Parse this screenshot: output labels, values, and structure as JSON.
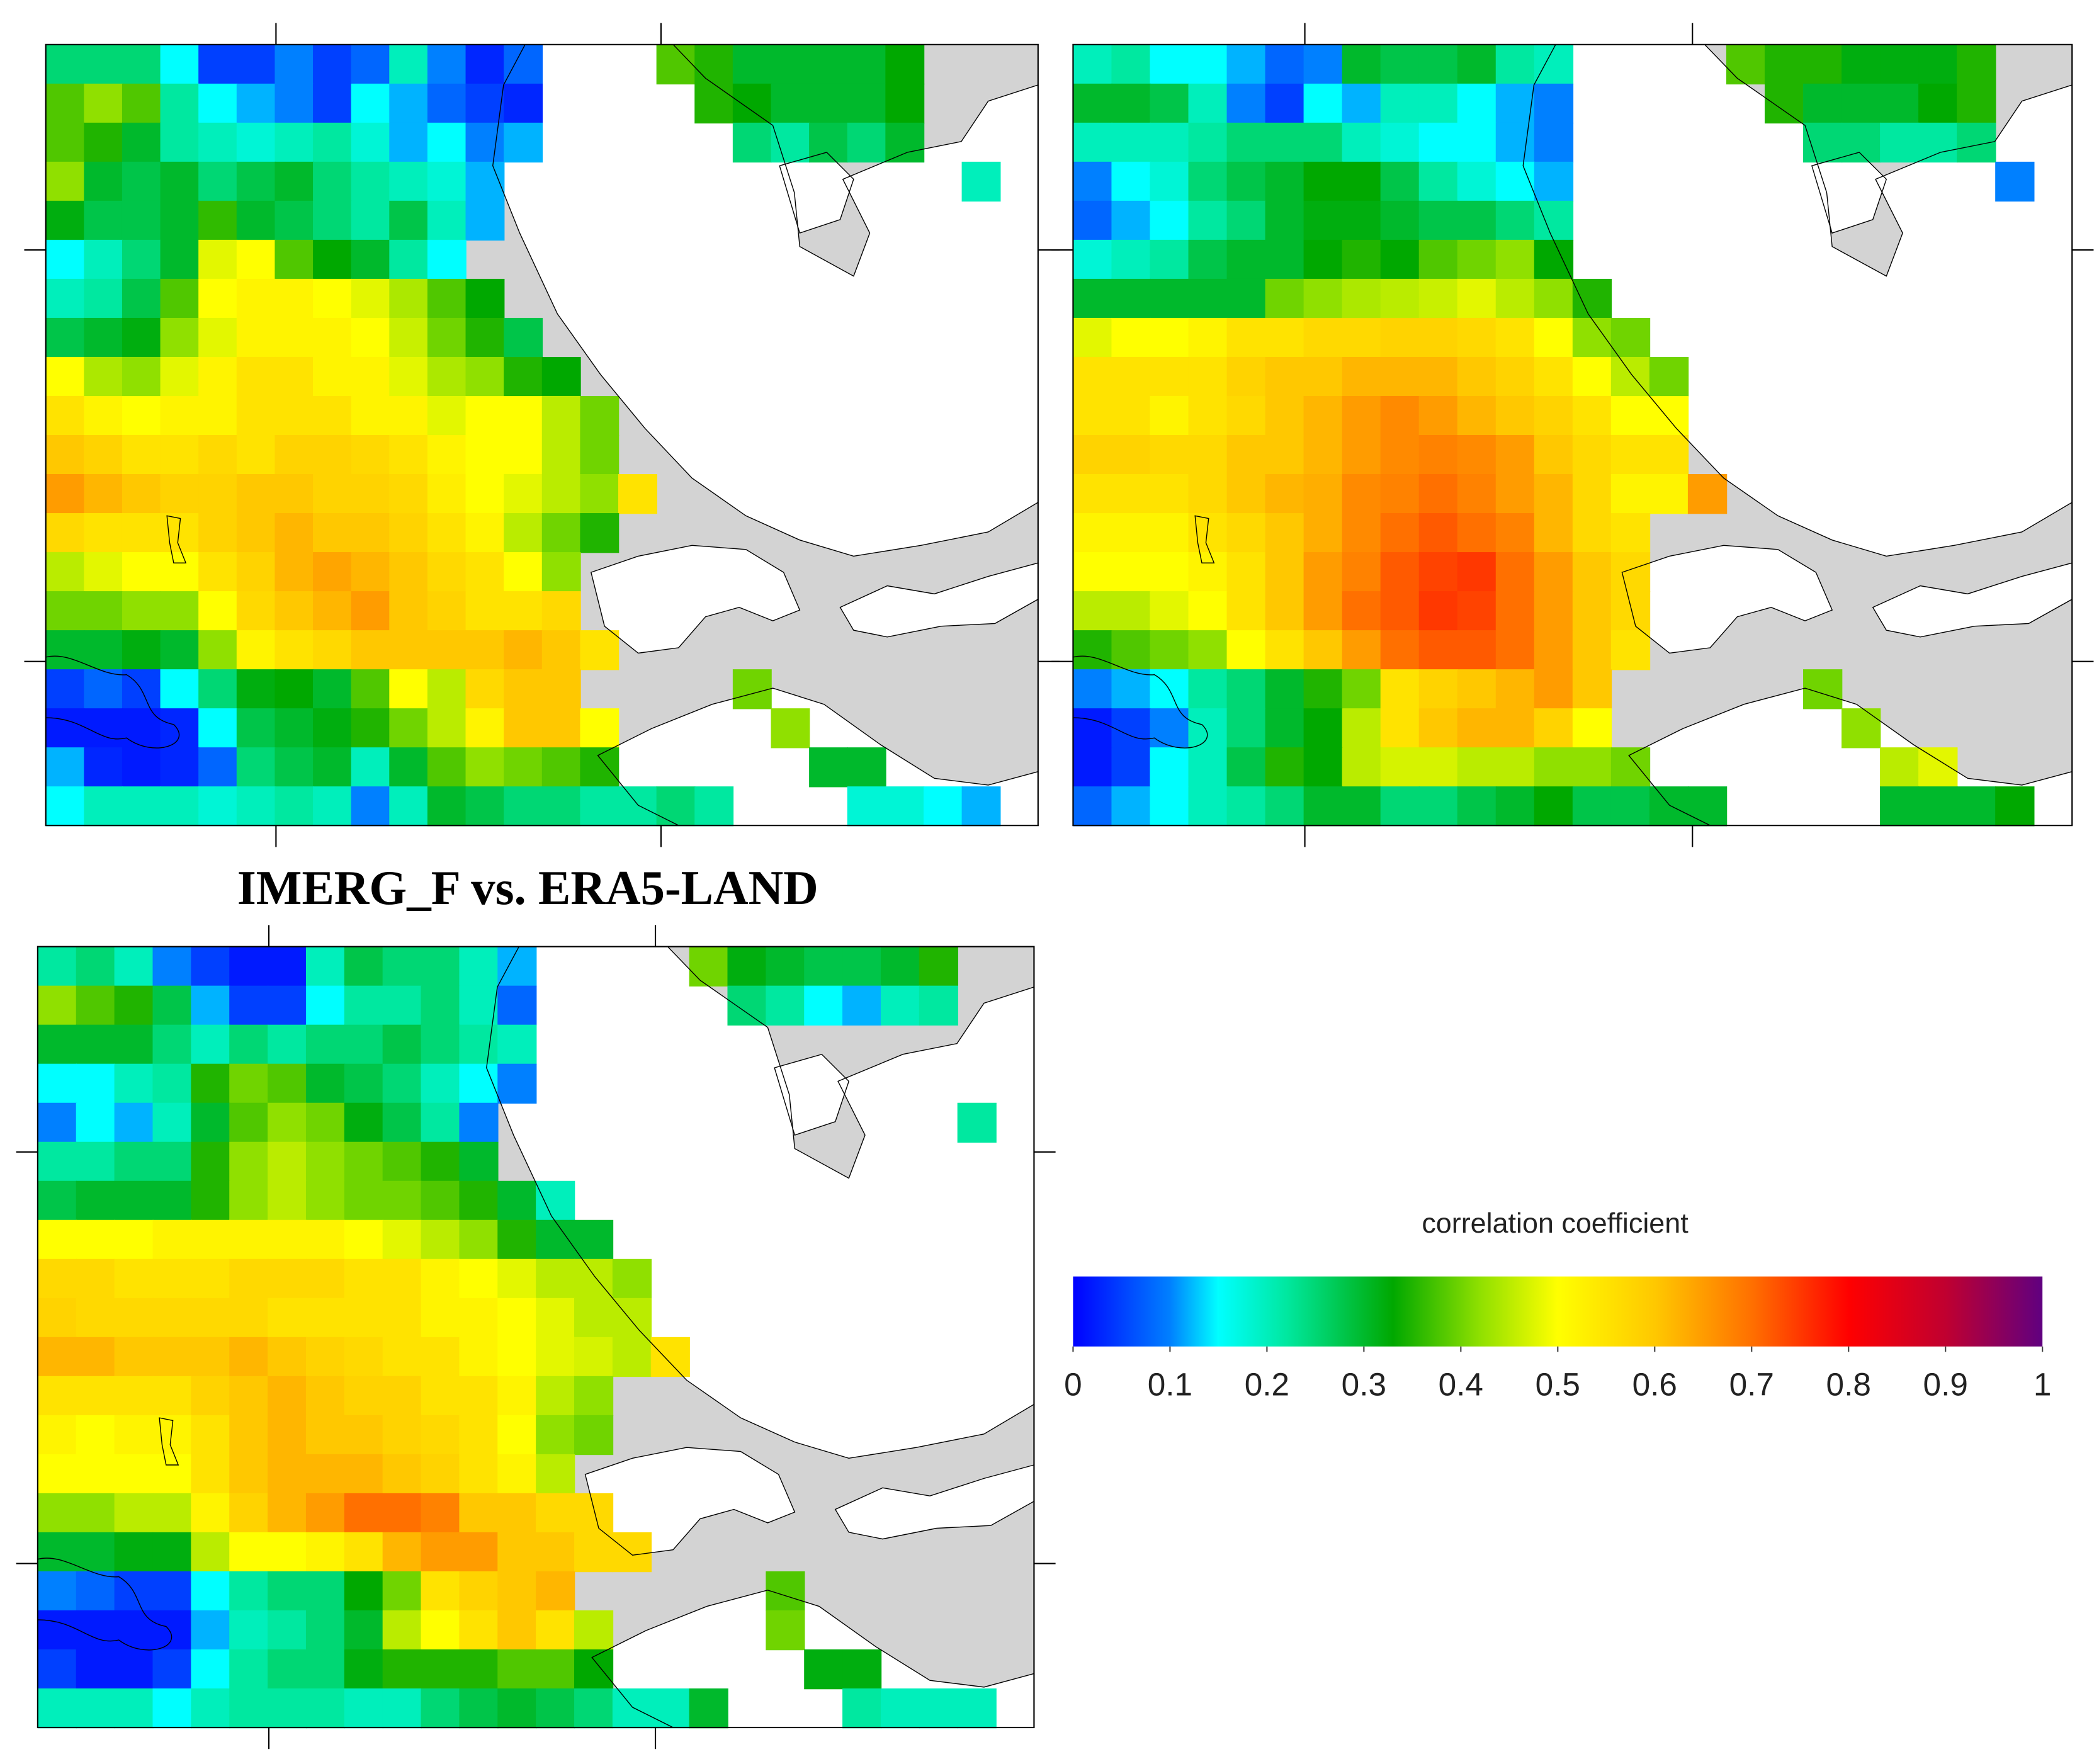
{
  "chart_data": [
    {
      "type": "heatmap",
      "values": [
        [
          0.25,
          0.25,
          0.25,
          0.15,
          0.05,
          0.05,
          0.1,
          0.05,
          0.08,
          0.2,
          0.1,
          0.03,
          0.08,
          null,
          null,
          null,
          0.38,
          0.35,
          0.3,
          0.3,
          0.3,
          0.3,
          0.33
        ],
        [
          0.38,
          0.42,
          0.38,
          0.22,
          0.15,
          0.12,
          0.1,
          0.05,
          0.15,
          0.12,
          0.08,
          0.05,
          0.03,
          null,
          null,
          null,
          null,
          0.35,
          0.33,
          0.3,
          0.3,
          0.3,
          0.33
        ],
        [
          0.38,
          0.35,
          0.3,
          0.22,
          0.2,
          0.18,
          0.2,
          0.22,
          0.18,
          0.12,
          0.15,
          0.1,
          0.12,
          null,
          null,
          null,
          null,
          null,
          0.25,
          0.22,
          0.28,
          0.25,
          0.3
        ],
        [
          0.42,
          0.3,
          0.28,
          0.3,
          0.25,
          0.28,
          0.3,
          0.25,
          0.22,
          0.2,
          0.18,
          0.12,
          null,
          null,
          null,
          null,
          null,
          null,
          null,
          null,
          null,
          null,
          null,
          null,
          0.2
        ],
        [
          0.32,
          0.28,
          0.28,
          0.3,
          0.36,
          0.3,
          0.28,
          0.25,
          0.22,
          0.28,
          0.2,
          0.12
        ],
        [
          0.15,
          0.2,
          0.25,
          0.3,
          0.48,
          0.5,
          0.38,
          0.33,
          0.3,
          0.22,
          0.15
        ],
        [
          0.2,
          0.22,
          0.28,
          0.38,
          0.5,
          0.52,
          0.52,
          0.5,
          0.48,
          0.44,
          0.38,
          0.33
        ],
        [
          0.28,
          0.3,
          0.32,
          0.42,
          0.48,
          0.52,
          0.52,
          0.52,
          0.5,
          0.46,
          0.4,
          0.35,
          0.28
        ],
        [
          0.5,
          0.44,
          0.42,
          0.48,
          0.52,
          0.55,
          0.55,
          0.52,
          0.52,
          0.48,
          0.44,
          0.42,
          0.35,
          0.33
        ],
        [
          0.55,
          0.52,
          0.5,
          0.52,
          0.52,
          0.55,
          0.55,
          0.55,
          0.52,
          0.52,
          0.48,
          0.5,
          0.5,
          0.45,
          0.4
        ],
        [
          0.6,
          0.58,
          0.55,
          0.55,
          0.57,
          0.55,
          0.58,
          0.58,
          0.57,
          0.55,
          0.52,
          0.5,
          0.5,
          0.45,
          0.4
        ],
        [
          0.65,
          0.62,
          0.6,
          0.58,
          0.58,
          0.6,
          0.6,
          0.58,
          0.58,
          0.57,
          0.53,
          0.5,
          0.48,
          0.45,
          0.42,
          0.55
        ],
        [
          0.57,
          0.55,
          0.55,
          0.55,
          0.58,
          0.6,
          0.62,
          0.6,
          0.6,
          0.58,
          0.55,
          0.52,
          0.45,
          0.4,
          0.35
        ],
        [
          0.45,
          0.48,
          0.5,
          0.5,
          0.55,
          0.58,
          0.62,
          0.64,
          0.62,
          0.6,
          0.57,
          0.55,
          0.5,
          0.42
        ],
        [
          0.4,
          0.4,
          0.42,
          0.42,
          0.5,
          0.57,
          0.6,
          0.62,
          0.65,
          0.6,
          0.58,
          0.55,
          0.55,
          0.57
        ],
        [
          0.3,
          0.3,
          0.32,
          0.3,
          0.42,
          0.52,
          0.55,
          0.57,
          0.6,
          0.6,
          0.6,
          0.6,
          0.62,
          0.6,
          0.55
        ],
        [
          0.05,
          0.08,
          0.05,
          0.15,
          0.25,
          0.32,
          0.33,
          0.3,
          0.38,
          0.5,
          0.45,
          0.57,
          0.6,
          0.6,
          null,
          null,
          null,
          null,
          0.4
        ],
        [
          0.02,
          0.02,
          0.02,
          0.03,
          0.15,
          0.28,
          0.3,
          0.32,
          0.35,
          0.4,
          0.45,
          0.52,
          0.6,
          0.6,
          0.5,
          null,
          null,
          null,
          null,
          0.42
        ],
        [
          0.12,
          0.03,
          0.02,
          0.03,
          0.08,
          0.25,
          0.28,
          0.3,
          0.2,
          0.3,
          0.38,
          0.42,
          0.4,
          0.38,
          0.35,
          null,
          null,
          null,
          null,
          null,
          0.3,
          0.3
        ],
        [
          0.15,
          0.2,
          0.2,
          0.2,
          0.18,
          0.2,
          0.22,
          0.2,
          0.1,
          0.2,
          0.3,
          0.28,
          0.25,
          0.25,
          0.22,
          0.22,
          0.25,
          0.22,
          null,
          null,
          null,
          0.18,
          0.18,
          0.15,
          0.12
        ]
      ]
    },
    {
      "type": "heatmap",
      "values": [
        [
          0.2,
          0.22,
          0.15,
          0.15,
          0.12,
          0.08,
          0.1,
          0.3,
          0.28,
          0.28,
          0.3,
          0.22,
          0.2,
          null,
          null,
          null,
          null,
          0.38,
          0.35,
          0.35,
          0.32,
          0.32,
          0.32,
          0.35
        ],
        [
          0.3,
          0.3,
          0.28,
          0.2,
          0.1,
          0.05,
          0.15,
          0.12,
          0.2,
          0.2,
          0.15,
          0.12,
          0.1,
          null,
          null,
          null,
          null,
          null,
          0.35,
          0.3,
          0.3,
          0.3,
          0.33,
          0.35
        ],
        [
          0.2,
          0.2,
          0.2,
          0.22,
          0.25,
          0.25,
          0.25,
          0.2,
          0.18,
          0.15,
          0.15,
          0.12,
          0.1,
          null,
          null,
          null,
          null,
          null,
          null,
          0.25,
          0.25,
          0.22,
          0.22,
          0.25
        ],
        [
          0.1,
          0.15,
          0.18,
          0.25,
          0.28,
          0.3,
          0.33,
          0.33,
          0.28,
          0.22,
          0.18,
          0.15,
          0.12,
          null,
          null,
          null,
          null,
          null,
          null,
          null,
          null,
          null,
          null,
          null,
          0.1
        ],
        [
          0.08,
          0.12,
          0.15,
          0.22,
          0.25,
          0.3,
          0.32,
          0.32,
          0.3,
          0.28,
          0.28,
          0.25,
          0.22
        ],
        [
          0.18,
          0.2,
          0.22,
          0.28,
          0.3,
          0.3,
          0.33,
          0.35,
          0.33,
          0.38,
          0.4,
          0.42,
          0.33
        ],
        [
          0.3,
          0.3,
          0.3,
          0.3,
          0.3,
          0.4,
          0.42,
          0.44,
          0.45,
          0.46,
          0.48,
          0.45,
          0.42,
          0.35
        ],
        [
          0.48,
          0.5,
          0.5,
          0.52,
          0.55,
          0.55,
          0.57,
          0.57,
          0.58,
          0.58,
          0.57,
          0.55,
          0.5,
          0.42,
          0.4
        ],
        [
          0.55,
          0.55,
          0.55,
          0.55,
          0.58,
          0.6,
          0.6,
          0.62,
          0.62,
          0.62,
          0.6,
          0.58,
          0.55,
          0.5,
          0.45,
          0.4
        ],
        [
          0.55,
          0.55,
          0.52,
          0.55,
          0.57,
          0.6,
          0.62,
          0.65,
          0.67,
          0.65,
          0.62,
          0.6,
          0.58,
          0.55,
          0.5,
          0.5
        ],
        [
          0.58,
          0.58,
          0.57,
          0.57,
          0.6,
          0.6,
          0.62,
          0.65,
          0.67,
          0.68,
          0.67,
          0.65,
          0.6,
          0.57,
          0.55,
          0.55
        ],
        [
          0.55,
          0.55,
          0.55,
          0.57,
          0.6,
          0.62,
          0.63,
          0.67,
          0.68,
          0.7,
          0.68,
          0.65,
          0.62,
          0.57,
          0.52,
          0.52,
          0.65
        ],
        [
          0.52,
          0.52,
          0.52,
          0.55,
          0.57,
          0.6,
          0.63,
          0.67,
          0.7,
          0.72,
          0.7,
          0.68,
          0.62,
          0.57,
          0.55
        ],
        [
          0.5,
          0.5,
          0.5,
          0.52,
          0.55,
          0.6,
          0.65,
          0.68,
          0.72,
          0.74,
          0.75,
          0.7,
          0.65,
          0.6,
          0.57
        ],
        [
          0.45,
          0.45,
          0.48,
          0.5,
          0.55,
          0.6,
          0.65,
          0.7,
          0.72,
          0.75,
          0.74,
          0.7,
          0.65,
          0.6,
          0.57
        ],
        [
          0.35,
          0.38,
          0.4,
          0.42,
          0.5,
          0.55,
          0.6,
          0.65,
          0.7,
          0.72,
          0.72,
          0.7,
          0.65,
          0.6,
          0.55
        ],
        [
          0.1,
          0.12,
          0.15,
          0.22,
          0.25,
          0.3,
          0.35,
          0.4,
          0.55,
          0.58,
          0.6,
          0.62,
          0.65,
          0.6,
          null,
          null,
          null,
          null,
          null,
          0.4
        ],
        [
          0.02,
          0.05,
          0.1,
          0.2,
          0.25,
          0.3,
          0.33,
          0.45,
          0.55,
          0.6,
          0.62,
          0.62,
          0.58,
          0.5,
          null,
          null,
          null,
          null,
          null,
          null,
          0.42
        ],
        [
          0.02,
          0.05,
          0.15,
          0.2,
          0.28,
          0.35,
          0.33,
          0.45,
          0.47,
          0.47,
          0.45,
          0.45,
          0.42,
          0.42,
          0.4,
          null,
          null,
          null,
          null,
          null,
          null,
          0.45,
          0.48
        ],
        [
          0.08,
          0.12,
          0.15,
          0.2,
          0.22,
          0.25,
          0.3,
          0.3,
          0.25,
          0.25,
          0.28,
          0.3,
          0.33,
          0.28,
          0.28,
          0.3,
          0.3,
          null,
          null,
          null,
          null,
          0.3,
          0.3,
          0.3,
          0.33
        ]
      ]
    },
    {
      "type": "heatmap",
      "title": "IMERG_F vs. ERA5-LAND",
      "values": [
        [
          0.22,
          0.25,
          0.2,
          0.1,
          0.05,
          0.02,
          0.02,
          0.2,
          0.28,
          0.25,
          0.25,
          0.2,
          0.12,
          null,
          null,
          null,
          null,
          0.4,
          0.32,
          0.3,
          0.28,
          0.28,
          0.3,
          0.35
        ],
        [
          0.42,
          0.38,
          0.35,
          0.28,
          0.12,
          0.05,
          0.05,
          0.15,
          0.22,
          0.22,
          0.25,
          0.2,
          0.08,
          null,
          null,
          null,
          null,
          null,
          0.25,
          0.22,
          0.15,
          0.12,
          0.2,
          0.22
        ],
        [
          0.3,
          0.3,
          0.3,
          0.25,
          0.2,
          0.25,
          0.22,
          0.25,
          0.25,
          0.28,
          0.25,
          0.22,
          0.2
        ],
        [
          0.15,
          0.15,
          0.2,
          0.22,
          0.35,
          0.4,
          0.38,
          0.3,
          0.28,
          0.25,
          0.2,
          0.15,
          0.1
        ],
        [
          0.1,
          0.15,
          0.12,
          0.2,
          0.3,
          0.38,
          0.42,
          0.4,
          0.32,
          0.28,
          0.22,
          0.1,
          null,
          null,
          null,
          null,
          null,
          null,
          null,
          null,
          null,
          null,
          null,
          null,
          0.22
        ],
        [
          0.22,
          0.22,
          0.25,
          0.25,
          0.35,
          0.42,
          0.45,
          0.42,
          0.4,
          0.38,
          0.35,
          0.3
        ],
        [
          0.28,
          0.3,
          0.3,
          0.3,
          0.35,
          0.42,
          0.45,
          0.42,
          0.4,
          0.4,
          0.38,
          0.35,
          0.3,
          0.2
        ],
        [
          0.5,
          0.5,
          0.5,
          0.52,
          0.52,
          0.52,
          0.52,
          0.52,
          0.5,
          0.48,
          0.45,
          0.42,
          0.35,
          0.3,
          0.3
        ],
        [
          0.57,
          0.57,
          0.55,
          0.55,
          0.55,
          0.57,
          0.57,
          0.57,
          0.55,
          0.55,
          0.52,
          0.5,
          0.48,
          0.45,
          0.45,
          0.42
        ],
        [
          0.58,
          0.57,
          0.57,
          0.57,
          0.57,
          0.57,
          0.55,
          0.55,
          0.55,
          0.55,
          0.52,
          0.52,
          0.5,
          0.48,
          0.45,
          0.45
        ],
        [
          0.62,
          0.62,
          0.6,
          0.6,
          0.6,
          0.62,
          0.6,
          0.58,
          0.57,
          0.55,
          0.55,
          0.52,
          0.5,
          0.48,
          0.47,
          0.45,
          0.55
        ],
        [
          0.55,
          0.55,
          0.55,
          0.55,
          0.58,
          0.6,
          0.62,
          0.6,
          0.58,
          0.58,
          0.55,
          0.55,
          0.52,
          0.45,
          0.42
        ],
        [
          0.52,
          0.5,
          0.52,
          0.52,
          0.55,
          0.6,
          0.62,
          0.6,
          0.6,
          0.58,
          0.57,
          0.55,
          0.5,
          0.42,
          0.4
        ],
        [
          0.5,
          0.5,
          0.5,
          0.5,
          0.55,
          0.6,
          0.62,
          0.62,
          0.62,
          0.6,
          0.58,
          0.55,
          0.52,
          0.45
        ],
        [
          0.42,
          0.42,
          0.45,
          0.45,
          0.52,
          0.58,
          0.62,
          0.65,
          0.7,
          0.7,
          0.68,
          0.6,
          0.6,
          0.57,
          0.57
        ],
        [
          0.3,
          0.3,
          0.32,
          0.32,
          0.45,
          0.5,
          0.5,
          0.52,
          0.55,
          0.62,
          0.65,
          0.65,
          0.6,
          0.6,
          0.57,
          0.57
        ],
        [
          0.1,
          0.08,
          0.05,
          0.05,
          0.15,
          0.22,
          0.25,
          0.25,
          0.33,
          0.4,
          0.55,
          0.58,
          0.6,
          0.62,
          null,
          null,
          null,
          null,
          null,
          0.38
        ],
        [
          0.02,
          0.02,
          0.02,
          0.02,
          0.12,
          0.2,
          0.22,
          0.25,
          0.3,
          0.45,
          0.5,
          0.55,
          0.6,
          0.55,
          0.45,
          null,
          null,
          null,
          null,
          0.4
        ],
        [
          0.05,
          0.02,
          0.02,
          0.05,
          0.15,
          0.22,
          0.25,
          0.25,
          0.32,
          0.35,
          0.35,
          0.35,
          0.38,
          0.38,
          0.33,
          null,
          null,
          null,
          null,
          null,
          0.32,
          0.32
        ],
        [
          0.2,
          0.2,
          0.2,
          0.15,
          0.2,
          0.22,
          0.22,
          0.22,
          0.2,
          0.2,
          0.25,
          0.28,
          0.3,
          0.28,
          0.25,
          0.2,
          0.2,
          0.3,
          null,
          null,
          null,
          0.22,
          0.2,
          0.2,
          0.2
        ]
      ]
    }
  ],
  "colorbar": {
    "label": "correlation coefficient",
    "lim": [
      0,
      1
    ],
    "ticks": [
      0,
      0.1,
      0.2,
      0.3,
      0.4,
      0.5,
      0.6,
      0.7,
      0.8,
      0.9,
      1
    ],
    "colorscale": [
      [
        0,
        "#0000ff"
      ],
      [
        0.1,
        "#0080ff"
      ],
      [
        0.15,
        "#00ffff"
      ],
      [
        0.22,
        "#00e8a0"
      ],
      [
        0.33,
        "#00a800"
      ],
      [
        0.42,
        "#90e000"
      ],
      [
        0.5,
        "#ffff00"
      ],
      [
        0.6,
        "#ffc800"
      ],
      [
        0.7,
        "#ff7000"
      ],
      [
        0.8,
        "#ff0000"
      ],
      [
        0.9,
        "#c00030"
      ],
      [
        1,
        "#600080"
      ]
    ]
  }
}
